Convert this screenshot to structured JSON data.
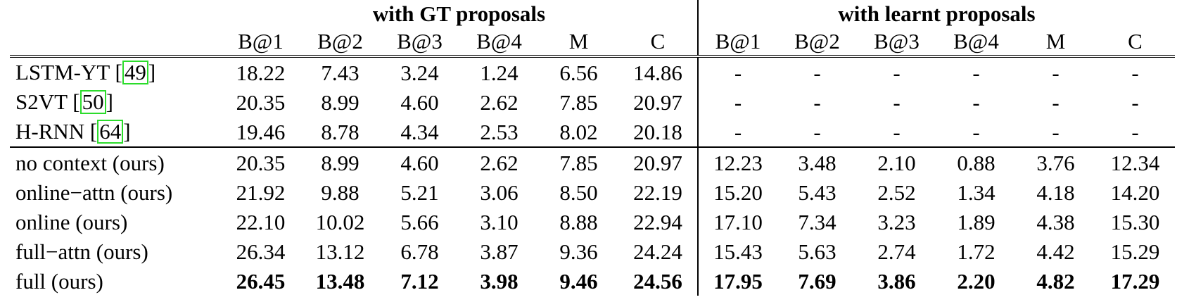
{
  "groups": {
    "gt": "with GT proposals",
    "learnt": "with learnt proposals"
  },
  "metrics": [
    "B@1",
    "B@2",
    "B@3",
    "B@4",
    "M",
    "C"
  ],
  "rows": [
    {
      "name": "LSTM-YT [",
      "ref": "49",
      "suffix": "]",
      "gt": [
        "18.22",
        "7.43",
        "3.24",
        "1.24",
        "6.56",
        "14.86"
      ],
      "learnt": [
        "-",
        "-",
        "-",
        "-",
        "-",
        "-"
      ]
    },
    {
      "name": "S2VT [",
      "ref": "50",
      "suffix": "]",
      "gt": [
        "20.35",
        "8.99",
        "4.60",
        "2.62",
        "7.85",
        "20.97"
      ],
      "learnt": [
        "-",
        "-",
        "-",
        "-",
        "-",
        "-"
      ]
    },
    {
      "name": "H-RNN [",
      "ref": "64",
      "suffix": "]",
      "gt": [
        "19.46",
        "8.78",
        "4.34",
        "2.53",
        "8.02",
        "20.18"
      ],
      "learnt": [
        "-",
        "-",
        "-",
        "-",
        "-",
        "-"
      ]
    },
    {
      "name": "no context (ours)",
      "ref": "",
      "suffix": "",
      "gt": [
        "20.35",
        "8.99",
        "4.60",
        "2.62",
        "7.85",
        "20.97"
      ],
      "learnt": [
        "12.23",
        "3.48",
        "2.10",
        "0.88",
        "3.76",
        "12.34"
      ]
    },
    {
      "name": "online−attn (ours)",
      "ref": "",
      "suffix": "",
      "gt": [
        "21.92",
        "9.88",
        "5.21",
        "3.06",
        "8.50",
        "22.19"
      ],
      "learnt": [
        "15.20",
        "5.43",
        "2.52",
        "1.34",
        "4.18",
        "14.20"
      ]
    },
    {
      "name": "online (ours)",
      "ref": "",
      "suffix": "",
      "gt": [
        "22.10",
        "10.02",
        "5.66",
        "3.10",
        "8.88",
        "22.94"
      ],
      "learnt": [
        "17.10",
        "7.34",
        "3.23",
        "1.89",
        "4.38",
        "15.30"
      ]
    },
    {
      "name": "full−attn (ours)",
      "ref": "",
      "suffix": "",
      "gt": [
        "26.34",
        "13.12",
        "6.78",
        "3.87",
        "9.36",
        "24.24"
      ],
      "learnt": [
        "15.43",
        "5.63",
        "2.74",
        "1.72",
        "4.42",
        "15.29"
      ]
    },
    {
      "name": "full (ours)",
      "ref": "",
      "suffix": "",
      "gt": [
        "26.45",
        "13.48",
        "7.12",
        "3.98",
        "9.46",
        "24.56"
      ],
      "learnt": [
        "17.95",
        "7.69",
        "3.86",
        "2.20",
        "4.82",
        "17.29"
      ]
    }
  ]
}
